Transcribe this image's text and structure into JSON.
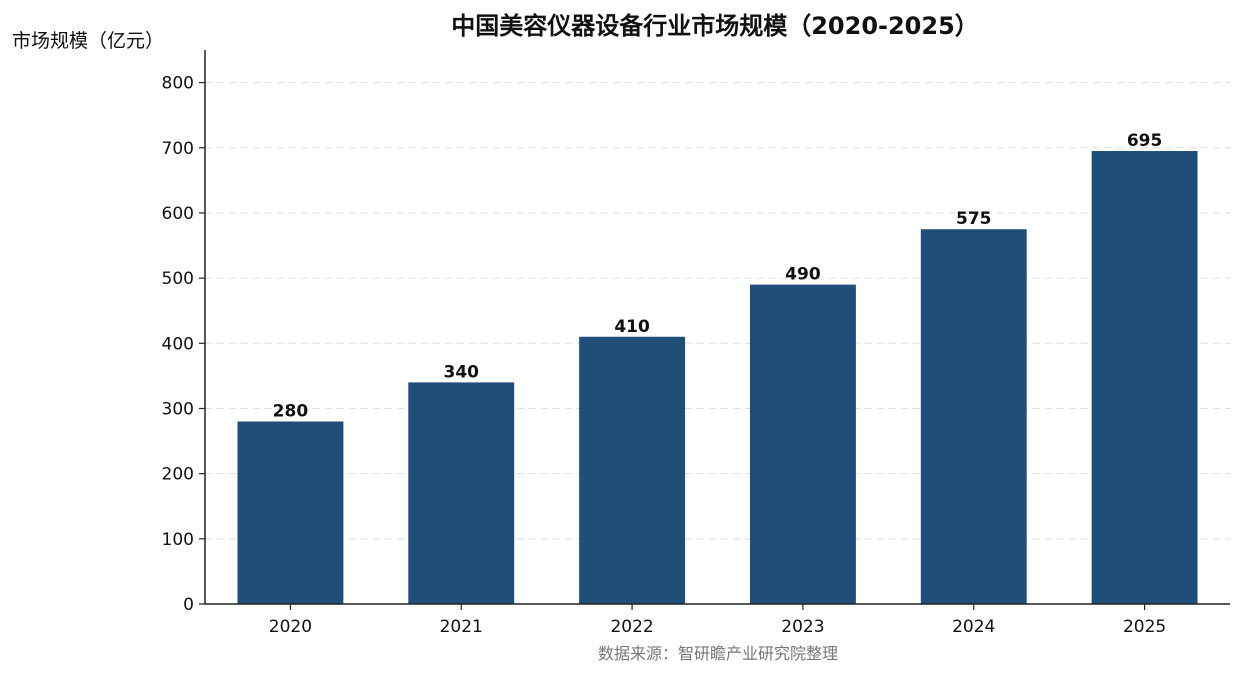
{
  "chart_data": {
    "type": "bar",
    "title": "中国美容仪器设备行业市场规模（2020-2025）",
    "ylabel": "市场规模（亿元）",
    "xlabel": "",
    "categories": [
      "2020",
      "2021",
      "2022",
      "2023",
      "2024",
      "2025"
    ],
    "values": [
      280,
      340,
      410,
      490,
      575,
      695
    ],
    "ylim": [
      0,
      850
    ],
    "yticks": [
      0,
      100,
      200,
      300,
      400,
      500,
      600,
      700,
      800
    ],
    "bar_color": "#1f4e79",
    "grid": true,
    "data_labels": true,
    "source": "数据来源：智研瞻产业研究院整理"
  }
}
